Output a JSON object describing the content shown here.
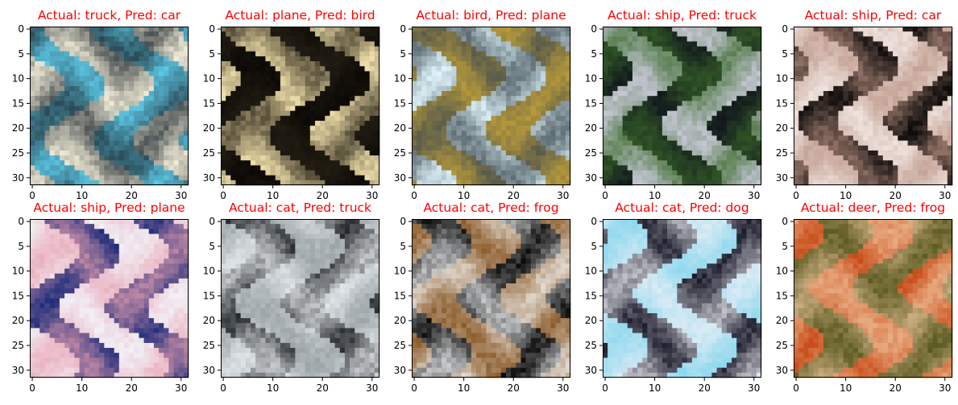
{
  "figure": {
    "title_color": "#ff0000",
    "background": "#ffffff"
  },
  "chart_data": [
    {
      "type": "image",
      "title": "Actual: truck, Pred: car",
      "xticks": [
        "0",
        "10",
        "20",
        "30"
      ],
      "yticks": [
        "0",
        "5",
        "10",
        "15",
        "20",
        "25",
        "30"
      ],
      "xlim": [
        -0.5,
        31.5
      ],
      "ylim": [
        31.5,
        -0.5
      ],
      "palette": [
        "#5cc6e4",
        "#f2ecd8",
        "#1e2a30"
      ]
    },
    {
      "type": "image",
      "title": "Actual: plane, Pred: bird",
      "xticks": [
        "0",
        "10",
        "20",
        "30"
      ],
      "yticks": [
        "0",
        "5",
        "10",
        "15",
        "20",
        "25",
        "30"
      ],
      "xlim": [
        -0.5,
        31.5
      ],
      "ylim": [
        31.5,
        -0.5
      ],
      "palette": [
        "#0b0805",
        "#f3e2ad",
        "#2a2418"
      ]
    },
    {
      "type": "image",
      "title": "Actual: bird, Pred: plane",
      "xticks": [
        "0",
        "10",
        "20",
        "30"
      ],
      "yticks": [
        "0",
        "5",
        "10",
        "15",
        "20",
        "25",
        "30"
      ],
      "xlim": [
        -0.5,
        31.5
      ],
      "ylim": [
        31.5,
        -0.5
      ],
      "palette": [
        "#dff5fb",
        "#b89a3a",
        "#3c4850"
      ]
    },
    {
      "type": "image",
      "title": "Actual: ship, Pred: truck",
      "xticks": [
        "0",
        "10",
        "20",
        "30"
      ],
      "yticks": [
        "0",
        "5",
        "10",
        "15",
        "20",
        "25",
        "30"
      ],
      "xlim": [
        -0.5,
        31.5
      ],
      "ylim": [
        31.5,
        -0.5
      ],
      "palette": [
        "#10141c",
        "#c8c8d8",
        "#3a6a2a"
      ]
    },
    {
      "type": "image",
      "title": "Actual: ship, Pred: car",
      "xticks": [
        "0",
        "10",
        "20",
        "30"
      ],
      "yticks": [
        "0",
        "5",
        "10",
        "15",
        "20",
        "25",
        "30"
      ],
      "xlim": [
        -0.5,
        31.5
      ],
      "ylim": [
        31.5,
        -0.5
      ],
      "palette": [
        "#0a0808",
        "#f0e4e0",
        "#b89080"
      ]
    },
    {
      "type": "image",
      "title": "Actual: ship, Pred: plane",
      "xticks": [
        "0",
        "10",
        "20",
        "30"
      ],
      "yticks": [
        "0",
        "5",
        "10",
        "15",
        "20",
        "25",
        "30"
      ],
      "xlim": [
        -0.5,
        31.5
      ],
      "ylim": [
        31.5,
        -0.5
      ],
      "palette": [
        "#1c2c7a",
        "#f2f2f8",
        "#e8a0b0"
      ]
    },
    {
      "type": "image",
      "title": "Actual: cat, Pred: truck",
      "xticks": [
        "0",
        "10",
        "20",
        "30"
      ],
      "yticks": [
        "0",
        "5",
        "10",
        "15",
        "20",
        "25",
        "30"
      ],
      "xlim": [
        -0.5,
        31.5
      ],
      "ylim": [
        31.5,
        -0.5
      ],
      "palette": [
        "#202428",
        "#9aa2a6",
        "#f4f8fa"
      ]
    },
    {
      "type": "image",
      "title": "Actual: cat, Pred: frog",
      "xticks": [
        "0",
        "10",
        "20",
        "30"
      ],
      "yticks": [
        "0",
        "5",
        "10",
        "15",
        "20",
        "25",
        "30"
      ],
      "xlim": [
        -0.5,
        31.5
      ],
      "ylim": [
        31.5,
        -0.5
      ],
      "palette": [
        "#0a0a0a",
        "#8a5a28",
        "#f8fafc"
      ]
    },
    {
      "type": "image",
      "title": "Actual: cat, Pred: dog",
      "xticks": [
        "0",
        "10",
        "20",
        "30"
      ],
      "yticks": [
        "0",
        "5",
        "10",
        "15",
        "20",
        "25",
        "30"
      ],
      "xlim": [
        -0.5,
        31.5
      ],
      "ylim": [
        31.5,
        -0.5
      ],
      "palette": [
        "#8ed8ee",
        "#1a1a2a",
        "#f0f0f6"
      ]
    },
    {
      "type": "image",
      "title": "Actual: deer, Pred: frog",
      "xticks": [
        "0",
        "10",
        "20",
        "30"
      ],
      "yticks": [
        "0",
        "5",
        "10",
        "15",
        "20",
        "25",
        "30"
      ],
      "xlim": [
        -0.5,
        31.5
      ],
      "ylim": [
        31.5,
        -0.5
      ],
      "palette": [
        "#c84a18",
        "#5a5a20",
        "#f0c8a0"
      ]
    }
  ]
}
